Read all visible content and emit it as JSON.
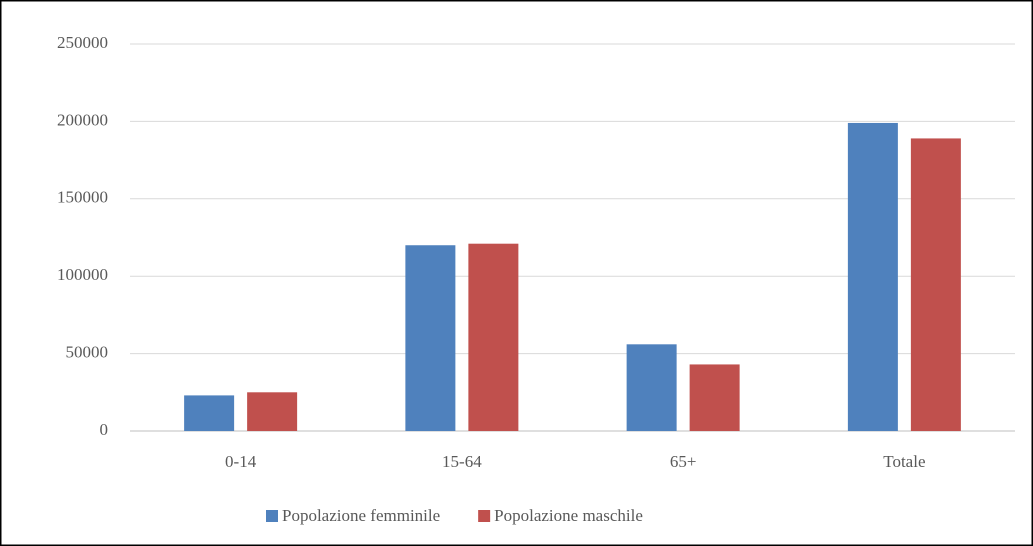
{
  "chart_data": {
    "type": "bar",
    "categories": [
      "0-14",
      "15-64",
      "65+",
      "Totale"
    ],
    "series": [
      {
        "name": "Popolazione femminile",
        "color": "#4f81bd",
        "values": [
          23000,
          120000,
          56000,
          199000
        ]
      },
      {
        "name": "Popolazione maschile",
        "color": "#c0504d",
        "values": [
          25000,
          121000,
          43000,
          189000
        ]
      }
    ],
    "ylim": [
      0,
      250000
    ],
    "yticks": [
      0,
      50000,
      100000,
      150000,
      200000,
      250000
    ],
    "grid": true,
    "legend": "bottom"
  }
}
